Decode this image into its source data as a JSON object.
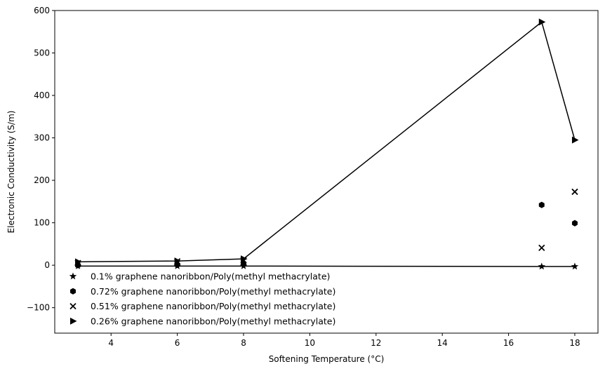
{
  "chart_data": {
    "type": "scatter",
    "title": "",
    "xlabel": "Softening Temperature (°C)",
    "ylabel": "Electronic Conductivity (S/m)",
    "xlim": [
      2.3,
      18.7
    ],
    "ylim": [
      -160,
      600
    ],
    "xticks": [
      4,
      6,
      8,
      10,
      12,
      14,
      16,
      18
    ],
    "yticks": [
      -100,
      0,
      100,
      200,
      300,
      400,
      500,
      600
    ],
    "grid": false,
    "legend_position": "lower-left",
    "series": [
      {
        "name": "0.1% graphene nanoribbon/Poly(methyl methacrylate)",
        "marker": "star",
        "connected": true,
        "x": [
          3,
          6,
          8,
          17,
          18
        ],
        "y": [
          -2,
          -2,
          -2,
          -3,
          -3
        ]
      },
      {
        "name": "0.72% graphene nanoribbon/Poly(methyl methacrylate)",
        "marker": "hexagon",
        "connected": false,
        "x": [
          3,
          6,
          8,
          17,
          18
        ],
        "y": [
          0,
          1,
          3,
          142,
          99
        ]
      },
      {
        "name": "0.51% graphene nanoribbon/Poly(methyl methacrylate)",
        "marker": "x",
        "connected": false,
        "x": [
          3,
          6,
          8,
          17,
          18
        ],
        "y": [
          5,
          9,
          12,
          41,
          173
        ]
      },
      {
        "name": "0.26% graphene nanoribbon/Poly(methyl methacrylate)",
        "marker": "triangle-right",
        "connected": true,
        "x": [
          3,
          6,
          8,
          17,
          18
        ],
        "y": [
          8,
          10,
          15,
          573,
          295
        ]
      }
    ]
  }
}
